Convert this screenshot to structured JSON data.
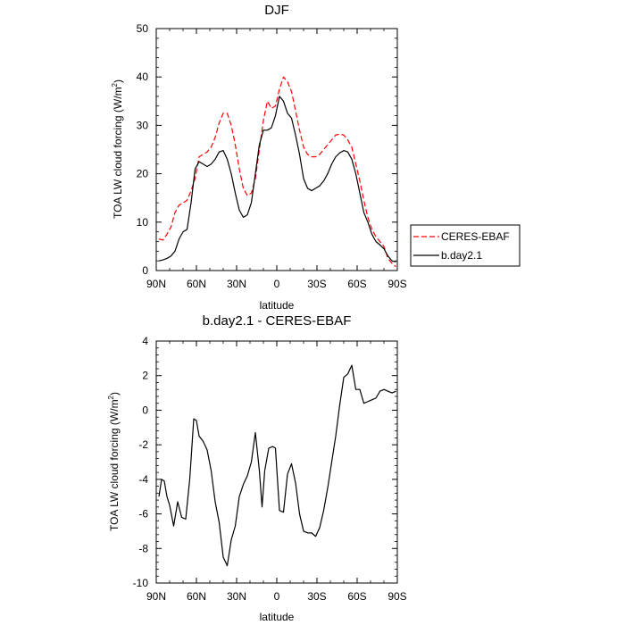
{
  "chart_data": [
    {
      "type": "line",
      "title": "DJF",
      "xlabel": "latitude",
      "ylabel": "TOA LW cloud forcing (W/m²)",
      "xlim": [
        90,
        -90
      ],
      "ylim": [
        0,
        50
      ],
      "xticks": [
        90,
        60,
        30,
        0,
        -30,
        -60,
        -90
      ],
      "xtick_labels": [
        "90N",
        "60N",
        "30N",
        "0",
        "30S",
        "60S",
        "90S"
      ],
      "yticks": [
        0,
        10,
        20,
        30,
        40,
        50
      ],
      "ytick_labels": [
        "0",
        "10",
        "20",
        "30",
        "40",
        "50"
      ],
      "legend_position": "right-outside",
      "series": [
        {
          "name": "CERES-EBAF",
          "color": "#ff0000",
          "dash": "dashed",
          "x": [
            88,
            85,
            82,
            79,
            76,
            73,
            70,
            67,
            64,
            61,
            58,
            55,
            52,
            49,
            46,
            43,
            40,
            37,
            34,
            31,
            28,
            25,
            22,
            19,
            16,
            13,
            10,
            7,
            4,
            1,
            -2,
            -5,
            -8,
            -11,
            -14,
            -17,
            -20,
            -23,
            -26,
            -29,
            -32,
            -35,
            -38,
            -41,
            -44,
            -47,
            -50,
            -53,
            -56,
            -59,
            -62,
            -65,
            -68,
            -71,
            -74,
            -77,
            -80,
            -83,
            -86,
            -89
          ],
          "y": [
            6.5,
            6.3,
            7.5,
            9,
            12,
            13.5,
            14,
            14.5,
            16.5,
            19,
            23.5,
            24,
            24.5,
            25.5,
            27.5,
            30.5,
            32.5,
            32.5,
            30,
            26,
            21,
            17,
            15.5,
            16,
            19,
            25,
            31,
            35,
            33.5,
            34,
            37.5,
            40,
            39,
            37,
            33,
            29,
            25.5,
            24,
            23.5,
            23.5,
            24,
            25,
            26,
            27,
            28,
            28.2,
            28,
            27,
            25.5,
            22,
            18.5,
            14.5,
            11,
            8.5,
            7,
            6,
            5,
            2.5,
            1.5,
            0.8
          ]
        },
        {
          "name": "b.day2.1",
          "color": "#000000",
          "dash": "solid",
          "x": [
            88,
            85,
            82,
            79,
            76,
            73,
            70,
            67,
            64,
            61,
            58,
            55,
            52,
            49,
            46,
            43,
            40,
            37,
            34,
            31,
            28,
            25,
            22,
            19,
            16,
            13,
            10,
            7,
            4,
            1,
            -2,
            -5,
            -8,
            -11,
            -14,
            -17,
            -20,
            -23,
            -26,
            -29,
            -32,
            -35,
            -38,
            -41,
            -44,
            -47,
            -50,
            -53,
            -56,
            -59,
            -62,
            -65,
            -68,
            -71,
            -74,
            -77,
            -80,
            -83,
            -86,
            -89
          ],
          "y": [
            2,
            2.2,
            2.5,
            3,
            4,
            6.5,
            8,
            8.5,
            14,
            21,
            22.5,
            22,
            21.5,
            22,
            23,
            24.5,
            24.8,
            23,
            20,
            16,
            12.5,
            11,
            11.5,
            14,
            20,
            26,
            29,
            29,
            29.5,
            32,
            36,
            35,
            32.5,
            31.5,
            28,
            24,
            19,
            17,
            16.5,
            17,
            17.5,
            18.5,
            20,
            22,
            23.5,
            24.3,
            24.8,
            24.5,
            23,
            20,
            16,
            12,
            10,
            7.5,
            6,
            5.3,
            4.5,
            3,
            2,
            1.8
          ]
        }
      ]
    },
    {
      "type": "line",
      "title": "b.day2.1 - CERES-EBAF",
      "xlabel": "latitude",
      "ylabel": "TOA LW cloud forcing (W/m²)",
      "xlim": [
        90,
        -90
      ],
      "ylim": [
        -10,
        4
      ],
      "xticks": [
        90,
        60,
        30,
        0,
        -30,
        -60,
        -90
      ],
      "xtick_labels": [
        "90N",
        "60N",
        "30N",
        "0",
        "30S",
        "60S",
        "90S"
      ],
      "yticks": [
        -10,
        -8,
        -6,
        -4,
        -2,
        0,
        2,
        4
      ],
      "ytick_labels": [
        "-10",
        "-8",
        "-6",
        "-4",
        "-2",
        "0",
        "2",
        "4"
      ],
      "series": [
        {
          "color": "#000000",
          "dash": "solid",
          "x": [
            88,
            86,
            84,
            82,
            80,
            77,
            74,
            71,
            68,
            65,
            62,
            60,
            58,
            55,
            52,
            49,
            46,
            43,
            40,
            37,
            34,
            31,
            28,
            25,
            22,
            19,
            16,
            13,
            11,
            9,
            6,
            3,
            1,
            -2,
            -5,
            -8,
            -11,
            -14,
            -17,
            -20,
            -23,
            -26,
            -29,
            -32,
            -35,
            -38,
            -41,
            -44,
            -47,
            -50,
            -53,
            -56,
            -59,
            -62,
            -65,
            -68,
            -71,
            -74,
            -77,
            -80,
            -83,
            -86,
            -89
          ],
          "y": [
            -5,
            -4,
            -4.1,
            -5,
            -5.5,
            -6.7,
            -5.3,
            -6.2,
            -6.3,
            -4,
            -0.5,
            -0.6,
            -1.5,
            -1.8,
            -2.3,
            -3.5,
            -5.3,
            -6.5,
            -8.5,
            -9,
            -7.5,
            -6.7,
            -5,
            -4.3,
            -3.8,
            -3,
            -1.3,
            -3.5,
            -5.6,
            -3.5,
            -2.2,
            -2.1,
            -2.2,
            -5.8,
            -5.9,
            -3.7,
            -3.1,
            -4.2,
            -6,
            -7,
            -7.1,
            -7.1,
            -7.3,
            -6.8,
            -5.8,
            -4.5,
            -3,
            -1.5,
            0.3,
            1.9,
            2.1,
            2.6,
            1.2,
            1.2,
            0.4,
            0.5,
            0.6,
            0.7,
            1.1,
            1.2,
            1.1,
            1.0,
            1.1
          ]
        }
      ]
    }
  ]
}
